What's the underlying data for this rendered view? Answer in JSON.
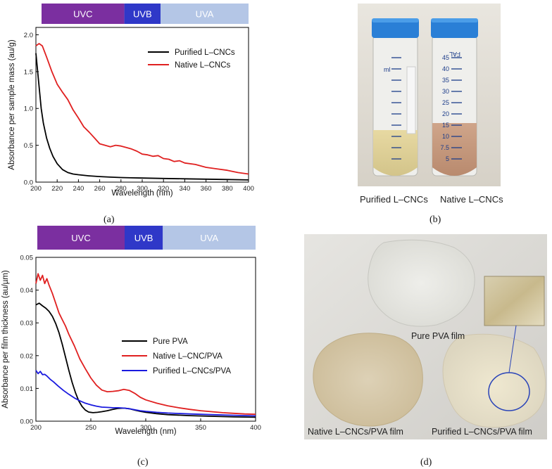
{
  "captions": {
    "a": "(a)",
    "b": "(b)",
    "c": "(c)",
    "d": "(d)"
  },
  "photo_b": {
    "label_left": "Purified L–CNCs",
    "label_right": "Native L–CNCs",
    "tube_marks": [
      "45",
      "40",
      "35",
      "30",
      "25",
      "20",
      "15",
      "10",
      "7.5",
      "5"
    ],
    "tube_ml": "ml",
    "tube_brand": "FAL"
  },
  "photo_d": {
    "label_top": "Pure PVA film",
    "label_left": "Native L–CNCs/PVA film",
    "label_right": "Purified L–CNCs/PVA film"
  },
  "colors": {
    "uvc": "#7b2fa0",
    "uvb": "#2f38c8",
    "uva": "#b4c6e6",
    "black": "#000000",
    "red": "#e02020",
    "blue": "#1a1adf"
  },
  "chart_data": [
    {
      "type": "line",
      "bands": [
        {
          "name": "UVC",
          "from": 200,
          "to": 280
        },
        {
          "name": "UVB",
          "from": 280,
          "to": 315
        },
        {
          "name": "UVA",
          "from": 315,
          "to": 400
        }
      ],
      "xlabel": "Wavelength (nm)",
      "ylabel": "Absorbance per sample mass (au/g)",
      "xlim": [
        200,
        400
      ],
      "ylim": [
        0,
        2.1
      ],
      "xticks": [
        "200",
        "220",
        "240",
        "260",
        "280",
        "300",
        "320",
        "340",
        "360",
        "380",
        "400"
      ],
      "yticks": [
        "0.0",
        "0.5",
        "1.0",
        "1.5",
        "2.0"
      ],
      "legend_position": "top-right",
      "series": [
        {
          "name": "Purified L–CNCs",
          "color": "black",
          "x": [
            200,
            201,
            203,
            205,
            207,
            210,
            213,
            216,
            220,
            225,
            230,
            235,
            240,
            250,
            260,
            270,
            280,
            290,
            300,
            320,
            340,
            360,
            380,
            400
          ],
          "y": [
            1.75,
            1.6,
            1.3,
            1.0,
            0.8,
            0.6,
            0.46,
            0.35,
            0.25,
            0.17,
            0.13,
            0.11,
            0.1,
            0.085,
            0.075,
            0.068,
            0.062,
            0.058,
            0.055,
            0.05,
            0.045,
            0.04,
            0.035,
            0.03
          ]
        },
        {
          "name": "Native L–CNCs",
          "color": "red",
          "x": [
            200,
            203,
            206,
            210,
            215,
            220,
            225,
            230,
            235,
            240,
            245,
            250,
            255,
            260,
            265,
            270,
            275,
            280,
            285,
            290,
            295,
            300,
            305,
            310,
            315,
            320,
            325,
            330,
            335,
            340,
            350,
            360,
            370,
            380,
            390,
            400
          ],
          "y": [
            1.85,
            1.88,
            1.85,
            1.7,
            1.5,
            1.33,
            1.22,
            1.12,
            0.98,
            0.87,
            0.75,
            0.68,
            0.6,
            0.52,
            0.5,
            0.48,
            0.5,
            0.49,
            0.47,
            0.45,
            0.42,
            0.38,
            0.37,
            0.35,
            0.36,
            0.32,
            0.31,
            0.28,
            0.29,
            0.26,
            0.24,
            0.2,
            0.18,
            0.16,
            0.13,
            0.11
          ]
        }
      ]
    },
    {
      "type": "line",
      "bands": [
        {
          "name": "UVC",
          "from": 200,
          "to": 280
        },
        {
          "name": "UVB",
          "from": 280,
          "to": 315
        },
        {
          "name": "UVA",
          "from": 315,
          "to": 400
        }
      ],
      "xlabel": "Wavelength (nm)",
      "ylabel": "Absorbance per film thickness (au/µm)",
      "xlim": [
        200,
        400
      ],
      "ylim": [
        0,
        0.05
      ],
      "xticks": [
        "200",
        "250",
        "300",
        "350",
        "400"
      ],
      "yticks": [
        "0.00",
        "0.01",
        "0.02",
        "0.03",
        "0.04",
        "0.05"
      ],
      "legend_position": "right",
      "series": [
        {
          "name": "Pure PVA",
          "color": "black",
          "x": [
            200,
            203,
            206,
            209,
            212,
            215,
            218,
            221,
            224,
            227,
            230,
            233,
            236,
            239,
            242,
            245,
            248,
            252,
            256,
            260,
            265,
            270,
            275,
            280,
            285,
            290,
            295,
            300,
            310,
            320,
            340,
            360,
            380,
            400
          ],
          "y": [
            0.0355,
            0.036,
            0.0352,
            0.0345,
            0.0335,
            0.032,
            0.0298,
            0.027,
            0.0235,
            0.0195,
            0.0155,
            0.0118,
            0.0087,
            0.0062,
            0.0045,
            0.0034,
            0.0028,
            0.0026,
            0.0027,
            0.0029,
            0.0032,
            0.0036,
            0.0039,
            0.004,
            0.0038,
            0.0034,
            0.003,
            0.0027,
            0.0023,
            0.002,
            0.0017,
            0.0015,
            0.0013,
            0.0012
          ]
        },
        {
          "name": "Native L–CNC/PVA",
          "color": "red",
          "x": [
            200,
            202,
            204,
            206,
            208,
            210,
            212,
            215,
            218,
            221,
            224,
            227,
            230,
            235,
            240,
            245,
            250,
            255,
            260,
            265,
            270,
            275,
            280,
            285,
            290,
            295,
            300,
            310,
            320,
            330,
            340,
            350,
            360,
            370,
            380,
            390,
            400
          ],
          "y": [
            0.042,
            0.045,
            0.043,
            0.0445,
            0.042,
            0.0435,
            0.0415,
            0.039,
            0.036,
            0.033,
            0.031,
            0.029,
            0.0265,
            0.023,
            0.019,
            0.016,
            0.0132,
            0.011,
            0.0095,
            0.009,
            0.0091,
            0.0093,
            0.0097,
            0.0094,
            0.0085,
            0.0073,
            0.0065,
            0.0055,
            0.0047,
            0.0041,
            0.0036,
            0.0032,
            0.0029,
            0.0026,
            0.0024,
            0.0022,
            0.0021
          ]
        },
        {
          "name": "Purified L–CNCs/PVA",
          "color": "blue",
          "x": [
            200,
            202,
            204,
            206,
            208,
            210,
            213,
            216,
            220,
            225,
            230,
            235,
            240,
            245,
            250,
            255,
            260,
            265,
            270,
            275,
            280,
            285,
            290,
            295,
            300,
            310,
            320,
            340,
            360,
            380,
            400
          ],
          "y": [
            0.0155,
            0.0145,
            0.0152,
            0.0142,
            0.0143,
            0.0138,
            0.0128,
            0.012,
            0.0108,
            0.0094,
            0.0082,
            0.0071,
            0.0062,
            0.0055,
            0.005,
            0.0046,
            0.0043,
            0.0042,
            0.0041,
            0.0041,
            0.004,
            0.0038,
            0.0035,
            0.0032,
            0.003,
            0.0027,
            0.0025,
            0.0022,
            0.002,
            0.0018,
            0.0016
          ]
        }
      ]
    }
  ]
}
